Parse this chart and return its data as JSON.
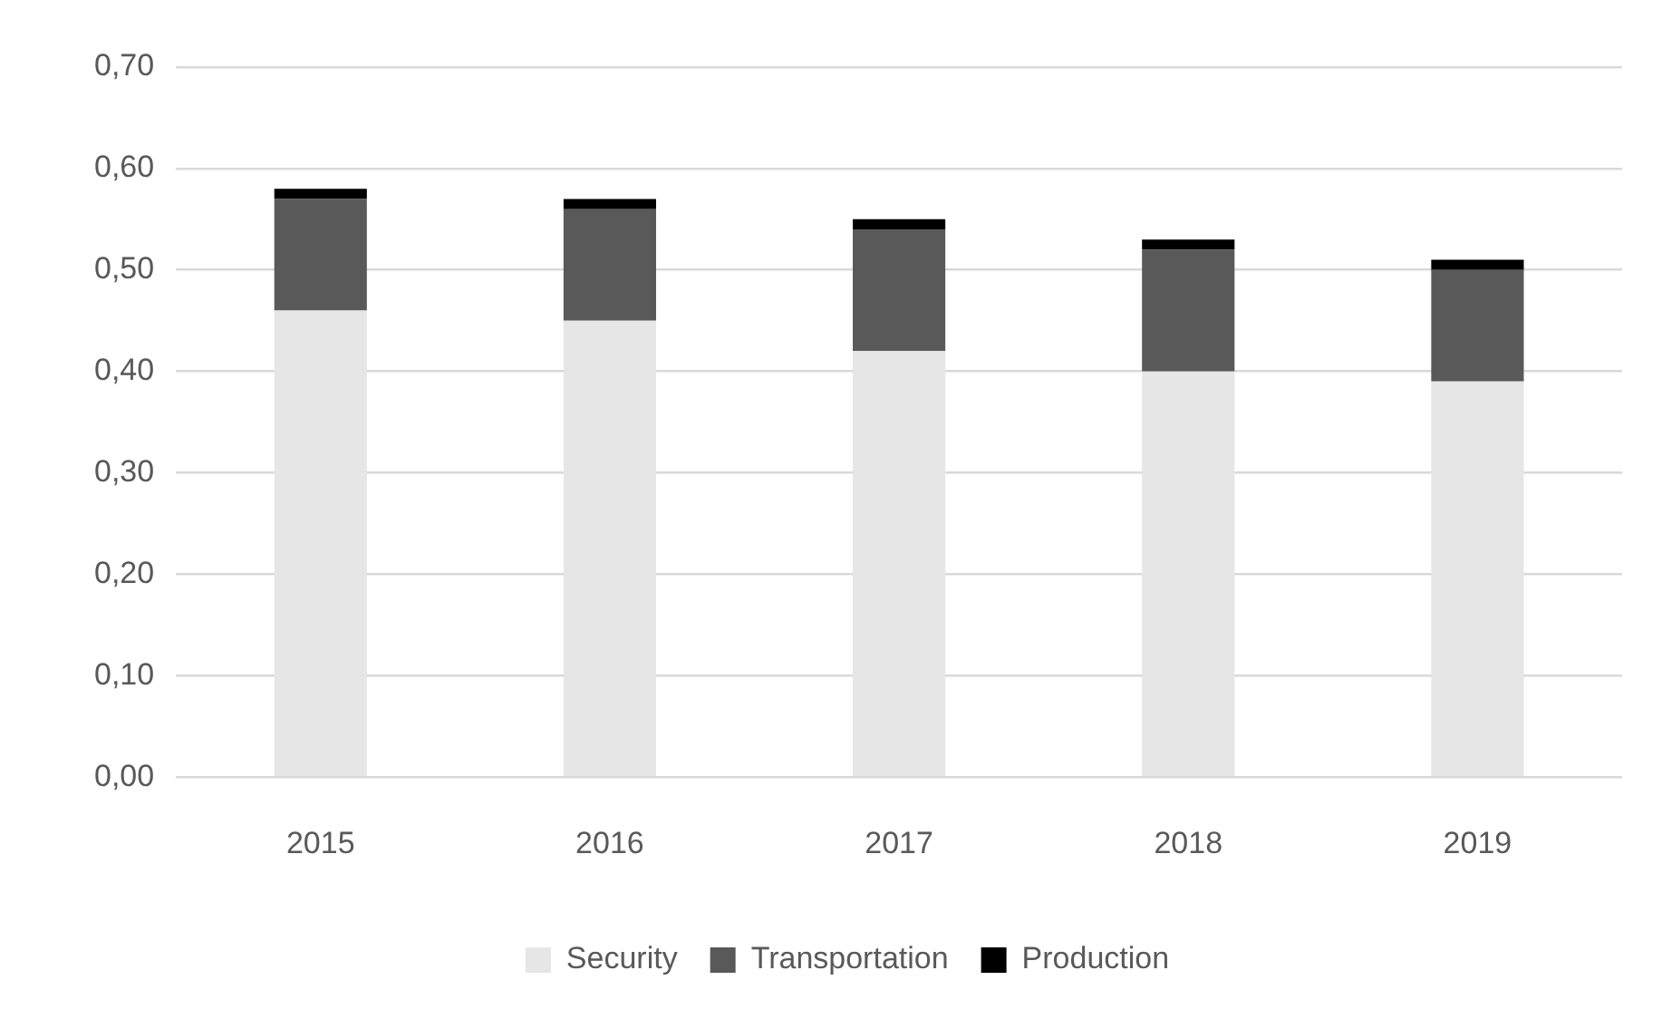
{
  "chart_data": {
    "type": "bar",
    "stacked": true,
    "categories": [
      "2015",
      "2016",
      "2017",
      "2018",
      "2019"
    ],
    "series": [
      {
        "name": "Security",
        "color": "#e6e6e6",
        "values": [
          0.46,
          0.45,
          0.42,
          0.4,
          0.39
        ]
      },
      {
        "name": "Transportation",
        "color": "#595959",
        "values": [
          0.11,
          0.11,
          0.12,
          0.12,
          0.11
        ]
      },
      {
        "name": "Production",
        "color": "#000000",
        "values": [
          0.01,
          0.01,
          0.01,
          0.01,
          0.01
        ]
      }
    ],
    "ylim": [
      0,
      0.7
    ],
    "yticks": [
      {
        "value": 0,
        "label": "0,00"
      },
      {
        "value": 0.1,
        "label": "0,10"
      },
      {
        "value": 0.2,
        "label": "0,20"
      },
      {
        "value": 0.3,
        "label": "0,30"
      },
      {
        "value": 0.4,
        "label": "0,40"
      },
      {
        "value": 0.5,
        "label": "0,50"
      },
      {
        "value": 0.6,
        "label": "0,60"
      },
      {
        "value": 0.7,
        "label": "0,70"
      }
    ],
    "grid": "y",
    "legend": "bottom"
  }
}
